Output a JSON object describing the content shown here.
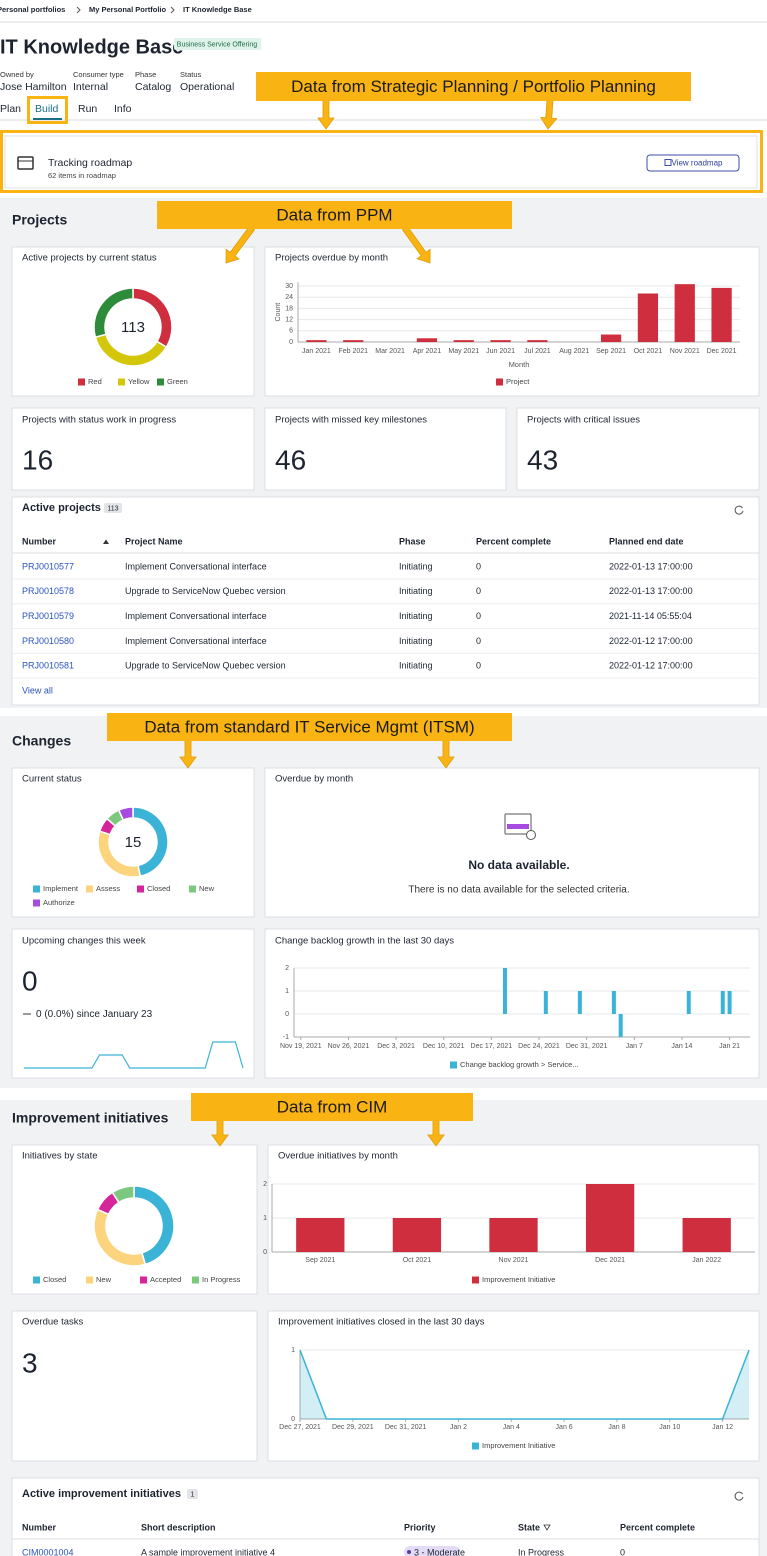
{
  "breadcrumb": [
    "Personal portfolios",
    "My Personal Portfolio",
    "IT Knowledge Base"
  ],
  "header": {
    "title": "IT Knowledge Base",
    "badge": "Business Service Offering",
    "fields": [
      {
        "label": "Owned by",
        "value": "Jose Hamilton"
      },
      {
        "label": "Consumer type",
        "value": "Internal"
      },
      {
        "label": "Phase",
        "value": "Catalog"
      },
      {
        "label": "Status",
        "value": "Operational"
      }
    ]
  },
  "tabs": [
    "Plan",
    "Build",
    "Run",
    "Info"
  ],
  "callouts": [
    "Data from Strategic Planning / Portfolio Planning",
    "Data from PPM",
    "Data from standard IT Service Mgmt (ITSM)",
    "Data from CIM"
  ],
  "roadmap": {
    "title": "Tracking roadmap",
    "subtitle": "62 items in roadmap",
    "button": "View roadmap"
  },
  "projects": {
    "heading": "Projects",
    "status_chart": {
      "type": "donut",
      "title": "Active projects by current status",
      "total": 113,
      "categories": [
        "Red",
        "Yellow",
        "Green"
      ],
      "values": [
        38,
        42,
        33
      ],
      "colors": [
        "#cf2e3e",
        "#d4c70a",
        "#2e8b3a"
      ]
    },
    "overdue_chart": {
      "type": "bar",
      "title": "Projects overdue by month",
      "y_label": "Count",
      "x_label": "Month",
      "categories": [
        "Jan 2021",
        "Feb 2021",
        "Mar 2021",
        "Apr 2021",
        "May 2021",
        "Jun 2021",
        "Jul 2021",
        "Aug 2021",
        "Sep 2021",
        "Oct 2021",
        "Nov 2021",
        "Dec 2021"
      ],
      "series": [
        {
          "name": "Project",
          "color": "#cf2e3e",
          "values": [
            1,
            1,
            0,
            2,
            1,
            1,
            1,
            0,
            4,
            26,
            31,
            29
          ]
        }
      ],
      "ylim": [
        0,
        32
      ],
      "yticks": [
        0,
        6,
        12,
        18,
        24,
        30
      ],
      "grid": true
    },
    "kpis": [
      {
        "title": "Projects with status work in progress",
        "value": 16
      },
      {
        "title": "Projects with missed key milestones",
        "value": 46
      },
      {
        "title": "Projects with critical issues",
        "value": 43
      }
    ],
    "table": {
      "title": "Active projects",
      "count": 113,
      "columns": [
        "Number",
        "Project Name",
        "Phase",
        "Percent complete",
        "Planned end date"
      ],
      "rows": [
        [
          "PRJ0010577",
          "Implement Conversational interface",
          "Initiating",
          0,
          "2022-01-13 17:00:00"
        ],
        [
          "PRJ0010578",
          "Upgrade to ServiceNow Quebec version",
          "Initiating",
          0,
          "2022-01-13 17:00:00"
        ],
        [
          "PRJ0010579",
          "Implement Conversational interface",
          "Initiating",
          0,
          "2021-11-14 05:55:04"
        ],
        [
          "PRJ0010580",
          "Implement Conversational interface",
          "Initiating",
          0,
          "2022-01-12 17:00:00"
        ],
        [
          "PRJ0010581",
          "Upgrade to ServiceNow Quebec version",
          "Initiating",
          0,
          "2022-01-12 17:00:00"
        ]
      ],
      "link": "View all"
    }
  },
  "changes": {
    "heading": "Changes",
    "status_chart": {
      "type": "donut",
      "title": "Current status",
      "total": 15,
      "categories": [
        "Implement",
        "Assess",
        "Closed",
        "New",
        "Authorize"
      ],
      "values": [
        7,
        5,
        1,
        1,
        1
      ],
      "colors": [
        "#3bb3d6",
        "#fdd47e",
        "#d6259a",
        "#7dc87f",
        "#a74ce0"
      ]
    },
    "overdue": {
      "title": "Overdue by month",
      "message": "No data available.",
      "detail": "There is no data available for the selected criteria."
    },
    "upcoming": {
      "title": "Upcoming changes this week",
      "value": 0,
      "delta": "0 (0.0%) since January 23",
      "sparkline": [
        0,
        0,
        0,
        0,
        0,
        0,
        0,
        0,
        0,
        0,
        1,
        1,
        1,
        1,
        0,
        0,
        0,
        0,
        0,
        0,
        0,
        0,
        0,
        0,
        0,
        2,
        2,
        2,
        2,
        0
      ]
    },
    "backlog_chart": {
      "type": "bar",
      "title": "Change backlog growth in the last 30 days",
      "x": [
        "2021-12-19",
        "2021-12-25",
        "2021-12-30",
        "2022-01-04",
        "2022-01-05",
        "2022-01-15",
        "2022-01-20",
        "2022-01-21"
      ],
      "series": [
        {
          "name": "Change backlog growth > Service...",
          "color": "#3bb3d6",
          "values": [
            2,
            1,
            1,
            1,
            -1,
            1,
            1,
            1
          ]
        }
      ],
      "xlim": [
        "2021-11-18",
        "2022-01-24"
      ],
      "xticks": [
        {
          "value": "2021-11-19",
          "label": "Nov 19, 2021"
        },
        {
          "value": "2021-11-26",
          "label": "Nov 26, 2021"
        },
        {
          "value": "2021-12-03",
          "label": "Dec 3, 2021"
        },
        {
          "value": "2021-12-10",
          "label": "Dec 10, 2021"
        },
        {
          "value": "2021-12-17",
          "label": "Dec 17, 2021"
        },
        {
          "value": "2021-12-24",
          "label": "Dec 24, 2021"
        },
        {
          "value": "2021-12-31",
          "label": "Dec 31, 2021"
        },
        {
          "value": "2022-01-07",
          "label": "Jan 7"
        },
        {
          "value": "2022-01-14",
          "label": "Jan 14"
        },
        {
          "value": "2022-01-21",
          "label": "Jan 21"
        }
      ],
      "ylim": [
        -1,
        2
      ],
      "yticks": [
        -1,
        0,
        1,
        2
      ],
      "grid": true
    }
  },
  "improvements": {
    "heading": "Improvement initiatives",
    "state_chart": {
      "type": "donut",
      "title": "Initiatives by state",
      "categories": [
        "Closed",
        "New",
        "Accepted",
        "In Progress"
      ],
      "values": [
        5,
        4,
        1,
        1
      ],
      "colors": [
        "#3bb3d6",
        "#fdd47e",
        "#d6259a",
        "#7dc87f"
      ]
    },
    "overdue_chart": {
      "type": "bar",
      "title": "Overdue initiatives by month",
      "categories": [
        "Sep 2021",
        "Oct 2021",
        "Nov 2021",
        "Dec 2021",
        "Jan 2022"
      ],
      "series": [
        {
          "name": "Improvement Initiative",
          "color": "#cf2e3e",
          "values": [
            1,
            1,
            1,
            2,
            1
          ]
        }
      ],
      "ylim": [
        0,
        2
      ],
      "yticks": [
        0,
        1,
        2
      ],
      "grid": true
    },
    "tasks": {
      "title": "Overdue tasks",
      "value": 3
    },
    "closed_chart": {
      "type": "area",
      "title": "Improvement initiatives closed in the last 30 days",
      "x": [
        "2021-12-27",
        "2021-12-28",
        "2021-12-29",
        "2021-12-30",
        "2021-12-31",
        "2022-01-01",
        "2022-01-02",
        "2022-01-03",
        "2022-01-04",
        "2022-01-05",
        "2022-01-06",
        "2022-01-07",
        "2022-01-08",
        "2022-01-09",
        "2022-01-10",
        "2022-01-11",
        "2022-01-12",
        "2022-01-13"
      ],
      "series": [
        {
          "name": "Improvement Initiative",
          "color": "#3bb3d6",
          "values": [
            1,
            0,
            0,
            0,
            0,
            0,
            0,
            0,
            0,
            0,
            0,
            0,
            0,
            0,
            0,
            0,
            0,
            1
          ]
        }
      ],
      "xlim": [
        "2021-12-27",
        "2022-01-13"
      ],
      "xticks": [
        {
          "value": "2021-12-27",
          "label": "Dec 27, 2021"
        },
        {
          "value": "2021-12-29",
          "label": "Dec 29, 2021"
        },
        {
          "value": "2021-12-31",
          "label": "Dec 31, 2021"
        },
        {
          "value": "2022-01-02",
          "label": "Jan 2"
        },
        {
          "value": "2022-01-04",
          "label": "Jan 4"
        },
        {
          "value": "2022-01-06",
          "label": "Jan 6"
        },
        {
          "value": "2022-01-08",
          "label": "Jan 8"
        },
        {
          "value": "2022-01-10",
          "label": "Jan 10"
        },
        {
          "value": "2022-01-12",
          "label": "Jan 12"
        }
      ],
      "ylim": [
        0,
        1
      ],
      "yticks": [
        0,
        1
      ],
      "grid": true
    },
    "table": {
      "title": "Active improvement initiatives",
      "count": 1,
      "columns": [
        "Number",
        "Short description",
        "Priority",
        "State",
        "Percent complete"
      ],
      "rows": [
        [
          "CIM0001004",
          "A sample improvement initiative 4",
          "3 - Moderate",
          "In Progress",
          0
        ]
      ]
    }
  }
}
